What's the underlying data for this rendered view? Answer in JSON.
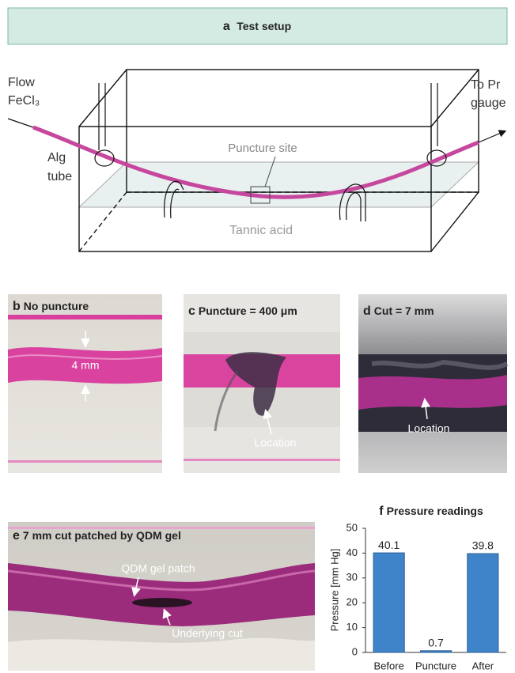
{
  "panel_a": {
    "label": "a",
    "title": "Test setup",
    "labels": {
      "flow": "Flow",
      "fecl3": "FeCl₃",
      "to_pr": "To Pr",
      "gauge": "gauge",
      "alg": "Alg",
      "tube": "tube",
      "puncture_site": "Puncture site",
      "tannic_acid": "Tannic acid"
    }
  },
  "panels": [
    {
      "label": "b",
      "title": "No puncture",
      "annotations": [
        "4 mm"
      ]
    },
    {
      "label": "c",
      "title": "Puncture = 400 μm",
      "annotations": [
        "Location"
      ]
    },
    {
      "label": "d",
      "title": "Cut = 7 mm",
      "annotations": [
        "Location"
      ]
    },
    {
      "label": "e",
      "title": "7 mm cut patched by QDM gel",
      "annotations": [
        "QDM gel patch",
        "Underlying cut"
      ]
    }
  ],
  "chart_data": {
    "type": "bar",
    "label": "f",
    "title": "Pressure readings",
    "y_label": "Pressure [mm Hg]",
    "categories": [
      "Before",
      "Puncture",
      "After"
    ],
    "values": [
      40.1,
      0.7,
      39.8
    ],
    "color": "#3f84c8",
    "ylim": [
      0,
      50
    ],
    "yticks": [
      0,
      10,
      20,
      30,
      40,
      50
    ],
    "grid": false
  }
}
